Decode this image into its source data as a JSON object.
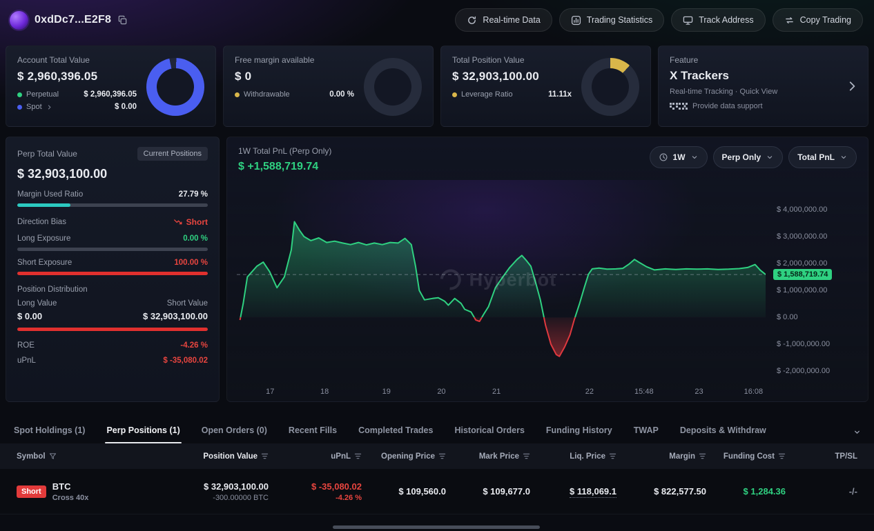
{
  "colors": {
    "bg": "#0a0c12",
    "card": "#131724",
    "green": "#2fd181",
    "red": "#e23b3b",
    "blue": "#4a5ef0",
    "yellow": "#d9b64a",
    "teal": "#2cc9c0",
    "text": "#e9ebf0",
    "muted": "#8b90a0"
  },
  "header": {
    "address": "0xdDc7...E2F8",
    "actions": [
      {
        "label": "Real-time Data",
        "icon": "refresh-icon"
      },
      {
        "label": "Trading Statistics",
        "icon": "stats-icon"
      },
      {
        "label": "Track Address",
        "icon": "monitor-icon"
      },
      {
        "label": "Copy Trading",
        "icon": "copy-trading-icon"
      }
    ]
  },
  "cards": {
    "account": {
      "title": "Account Total Value",
      "value": "$ 2,960,396.05",
      "perpetual": {
        "label": "Perpetual",
        "value": "$ 2,960,396.05"
      },
      "spot": {
        "label": "Spot",
        "value": "$ 0.00"
      }
    },
    "free_margin": {
      "title": "Free margin available",
      "value": "$ 0",
      "withdrawable": {
        "label": "Withdrawable",
        "value": "0.00 %"
      }
    },
    "total_position": {
      "title": "Total Position Value",
      "value": "$ 32,903,100.00",
      "leverage": {
        "label": "Leverage Ratio",
        "value": "11.11x"
      }
    },
    "feature": {
      "title": "Feature",
      "name": "X Trackers",
      "subtitle": "Real-time Tracking · Quick View",
      "support": "Provide data support"
    }
  },
  "perp_panel": {
    "title": "Perp Total Value",
    "badge": "Current Positions",
    "value": "$ 32,903,100.00",
    "margin_used": {
      "label": "Margin Used Ratio",
      "value": "27.79 %",
      "pct": 27.79
    },
    "direction_bias": {
      "label": "Direction Bias",
      "value": "Short"
    },
    "long_exposure": {
      "label": "Long Exposure",
      "value": "0.00 %",
      "pct": 0
    },
    "short_exposure": {
      "label": "Short Exposure",
      "value": "100.00 %",
      "pct": 100
    },
    "distribution": {
      "title": "Position Distribution",
      "long_label": "Long Value",
      "short_label": "Short Value",
      "long_value": "$ 0.00",
      "short_value": "$ 32,903,100.00",
      "short_pct": 100
    },
    "roe": {
      "label": "ROE",
      "value": "-4.26 %"
    },
    "upnl": {
      "label": "uPnL",
      "value": "$ -35,080.02"
    }
  },
  "chart_panel": {
    "title": "1W Total PnL (Perp Only)",
    "value": "$ +1,588,719.74",
    "timeframe": "1W",
    "scope": "Perp Only",
    "metric": "Total PnL",
    "watermark": "Hyperbot"
  },
  "chart_data": {
    "type": "area",
    "title": "1W Total PnL (Perp Only)",
    "current_value": 1588719.74,
    "current_label": "$ 1,588,719.74",
    "ylim": [
      -2300000,
      5100000
    ],
    "baseline": 0,
    "grid": false,
    "y_tick_labels": [
      "$ 4,000,000.00",
      "$ 3,000,000.00",
      "$ 2,000,000.00",
      "$ 1,000,000.00",
      "$ 0.00",
      "$ -1,000,000.00",
      "$ -2,000,000.00"
    ],
    "y_tick_values": [
      4000000,
      3000000,
      2000000,
      1000000,
      0,
      -1000000,
      -2000000
    ],
    "x_ticks": [
      "17",
      "18",
      "19",
      "20",
      "21",
      "22",
      "15:48",
      "23",
      "16:08"
    ],
    "x_tick_pos": [
      0.063,
      0.166,
      0.283,
      0.387,
      0.491,
      0.667,
      0.77,
      0.874,
      0.977
    ],
    "positive_color": "#2fd181",
    "negative_color": "#e0393f",
    "points": [
      [
        0.006,
        -100000
      ],
      [
        0.012,
        500000
      ],
      [
        0.02,
        1500000
      ],
      [
        0.038,
        1900000
      ],
      [
        0.05,
        2050000
      ],
      [
        0.062,
        1700000
      ],
      [
        0.076,
        1100000
      ],
      [
        0.09,
        1500000
      ],
      [
        0.103,
        2500000
      ],
      [
        0.109,
        3550000
      ],
      [
        0.118,
        3250000
      ],
      [
        0.127,
        3000000
      ],
      [
        0.14,
        2850000
      ],
      [
        0.155,
        2950000
      ],
      [
        0.17,
        2780000
      ],
      [
        0.185,
        2830000
      ],
      [
        0.2,
        2760000
      ],
      [
        0.215,
        2700000
      ],
      [
        0.23,
        2780000
      ],
      [
        0.245,
        2690000
      ],
      [
        0.26,
        2760000
      ],
      [
        0.275,
        2700000
      ],
      [
        0.29,
        2780000
      ],
      [
        0.305,
        2760000
      ],
      [
        0.318,
        2930000
      ],
      [
        0.33,
        2700000
      ],
      [
        0.338,
        1900000
      ],
      [
        0.345,
        1000000
      ],
      [
        0.355,
        650000
      ],
      [
        0.37,
        700000
      ],
      [
        0.381,
        730000
      ],
      [
        0.393,
        600000
      ],
      [
        0.4,
        450000
      ],
      [
        0.412,
        700000
      ],
      [
        0.424,
        520000
      ],
      [
        0.431,
        300000
      ],
      [
        0.443,
        200000
      ],
      [
        0.452,
        -100000
      ],
      [
        0.459,
        -150000
      ],
      [
        0.468,
        150000
      ],
      [
        0.476,
        400000
      ],
      [
        0.489,
        1100000
      ],
      [
        0.503,
        1500000
      ],
      [
        0.516,
        1850000
      ],
      [
        0.53,
        2150000
      ],
      [
        0.539,
        2300000
      ],
      [
        0.548,
        2100000
      ],
      [
        0.556,
        1900000
      ],
      [
        0.565,
        1300000
      ],
      [
        0.574,
        650000
      ],
      [
        0.584,
        -300000
      ],
      [
        0.594,
        -1000000
      ],
      [
        0.604,
        -1380000
      ],
      [
        0.61,
        -1450000
      ],
      [
        0.62,
        -1100000
      ],
      [
        0.63,
        -650000
      ],
      [
        0.638,
        -100000
      ],
      [
        0.648,
        500000
      ],
      [
        0.657,
        1100000
      ],
      [
        0.665,
        1600000
      ],
      [
        0.672,
        1800000
      ],
      [
        0.685,
        1830000
      ],
      [
        0.7,
        1790000
      ],
      [
        0.717,
        1800000
      ],
      [
        0.73,
        1820000
      ],
      [
        0.742,
        1980000
      ],
      [
        0.752,
        2150000
      ],
      [
        0.76,
        2050000
      ],
      [
        0.775,
        1880000
      ],
      [
        0.79,
        1760000
      ],
      [
        0.81,
        1800000
      ],
      [
        0.83,
        1780000
      ],
      [
        0.85,
        1800000
      ],
      [
        0.87,
        1790000
      ],
      [
        0.89,
        1800000
      ],
      [
        0.91,
        1780000
      ],
      [
        0.93,
        1790000
      ],
      [
        0.95,
        1810000
      ],
      [
        0.966,
        1850000
      ],
      [
        0.98,
        1960000
      ],
      [
        0.99,
        1750000
      ],
      [
        1.0,
        1588719.74
      ]
    ]
  },
  "tabs": {
    "items": [
      "Spot Holdings (1)",
      "Perp Positions (1)",
      "Open Orders (0)",
      "Recent Fills",
      "Completed Trades",
      "Historical Orders",
      "Funding History",
      "TWAP",
      "Deposits & Withdraw"
    ],
    "active_index": 1
  },
  "table": {
    "headers": [
      "Symbol",
      "Position Value",
      "uPnL",
      "Opening Price",
      "Mark Price",
      "Liq. Price",
      "Margin",
      "Funding Cost",
      "TP/SL"
    ],
    "row": {
      "side": "Short",
      "symbol": "BTC",
      "mode": "Cross 40x",
      "position_value": "$ 32,903,100.00",
      "position_size": "-300.00000 BTC",
      "upnl": "$ -35,080.02",
      "upnl_pct": "-4.26 %",
      "opening_price": "$ 109,560.0",
      "mark_price": "$ 109,677.0",
      "liq_price": "$ 118,069.1",
      "margin": "$ 822,577.50",
      "funding_cost": "$ 1,284.36",
      "tpsl": "-/-"
    }
  }
}
